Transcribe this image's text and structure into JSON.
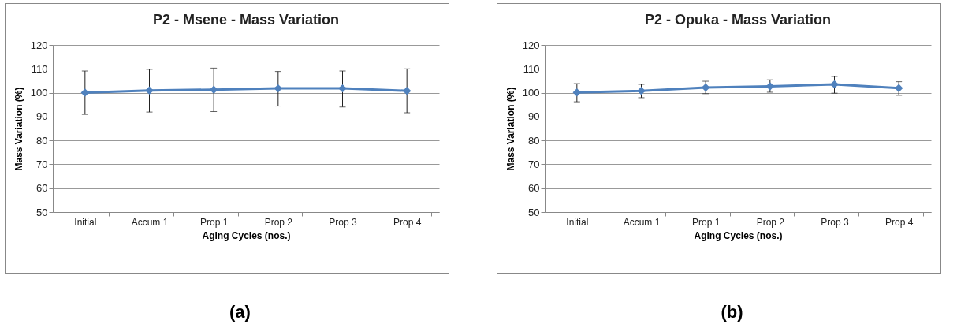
{
  "chart_data": [
    {
      "type": "line",
      "title": "P2 - Msene - Mass Variation",
      "xlabel": "Aging Cycles (nos.)",
      "ylabel": "Mass Variation (%)",
      "categories": [
        "Initial",
        "Accum 1",
        "Prop 1",
        "Prop 2",
        "Prop 3",
        "Prop 4"
      ],
      "series": [
        {
          "color": "#4f81bd",
          "values": [
            100.0,
            100.9,
            101.3,
            101.8,
            101.8,
            100.8
          ],
          "errors": [
            [
              90.9,
              109.1
            ],
            [
              91.9,
              109.8
            ],
            [
              92.1,
              110.3
            ],
            [
              94.4,
              108.9
            ],
            [
              94.0,
              109.1
            ],
            [
              91.6,
              110.0
            ]
          ]
        }
      ],
      "ylim": [
        50,
        120
      ],
      "yticks": [
        50,
        60,
        70,
        80,
        90,
        100,
        110,
        120
      ],
      "grid": "y",
      "marker": "diamond",
      "annotations": [
        "(a)"
      ]
    },
    {
      "type": "line",
      "title": "P2 - Opuka - Mass Variation",
      "xlabel": "Aging Cycles (nos.)",
      "ylabel": "Mass Variation (%)",
      "categories": [
        "Initial",
        "Accum 1",
        "Prop 1",
        "Prop 2",
        "Prop 3",
        "Prop 4"
      ],
      "series": [
        {
          "color": "#4f81bd",
          "values": [
            100.1,
            100.8,
            102.2,
            102.7,
            103.5,
            101.9
          ],
          "errors": [
            [
              96.2,
              103.8
            ],
            [
              97.9,
              103.5
            ],
            [
              99.6,
              104.8
            ],
            [
              100.2,
              105.4
            ],
            [
              99.8,
              106.8
            ],
            [
              98.9,
              104.6
            ]
          ]
        }
      ],
      "ylim": [
        50,
        120
      ],
      "yticks": [
        50,
        60,
        70,
        80,
        90,
        100,
        110,
        120
      ],
      "grid": "y",
      "marker": "diamond",
      "annotations": [
        "(b)"
      ]
    }
  ]
}
